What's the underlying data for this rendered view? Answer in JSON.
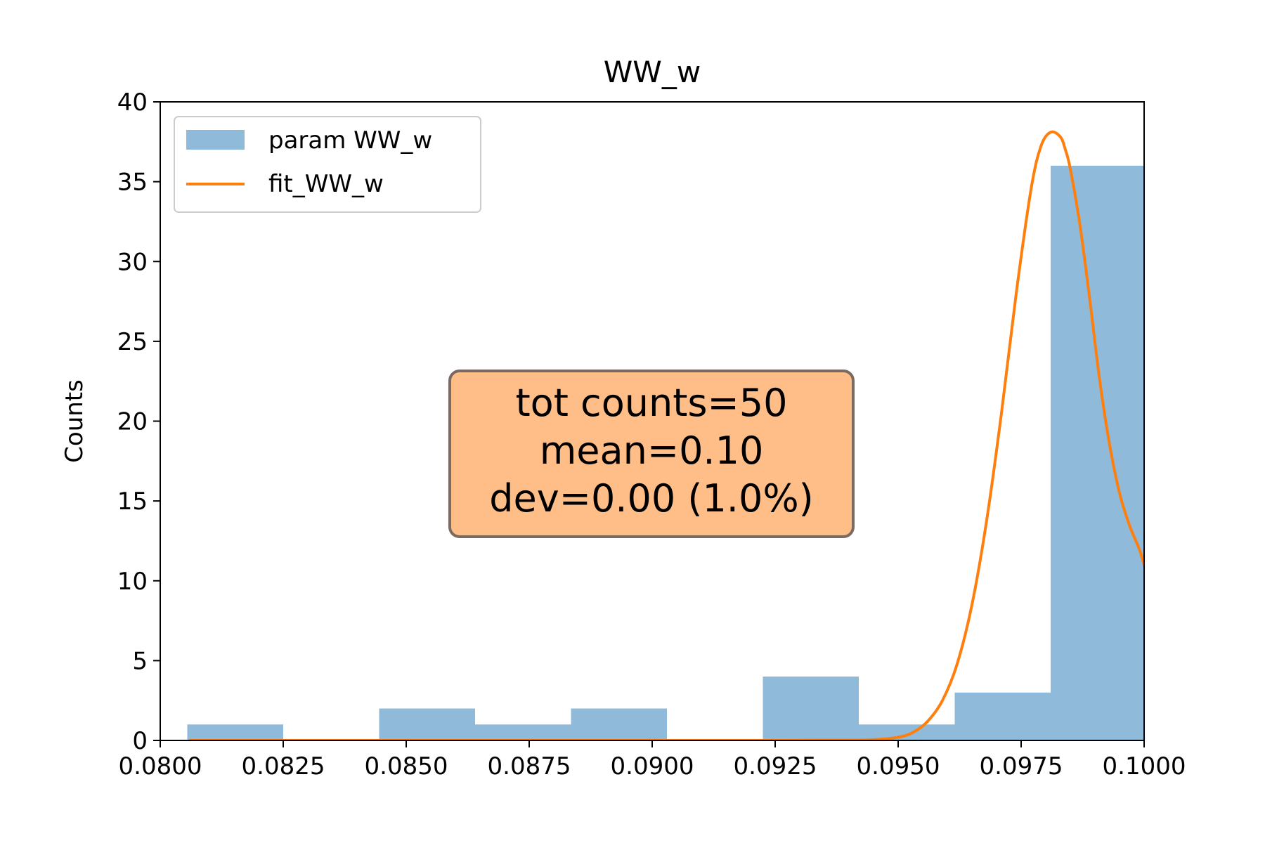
{
  "chart_data": {
    "type": "bar",
    "title": "WW_w",
    "xlabel": "",
    "ylabel": "Counts",
    "xlim": [
      0.08,
      0.1
    ],
    "ylim": [
      0,
      40
    ],
    "x_ticks": [
      "0.0800",
      "0.0825",
      "0.0850",
      "0.0875",
      "0.0900",
      "0.0925",
      "0.0950",
      "0.0975",
      "0.1000"
    ],
    "y_ticks": [
      "0",
      "5",
      "10",
      "15",
      "20",
      "25",
      "30",
      "35",
      "40"
    ],
    "grid": false,
    "legend_position": "top-left",
    "series": [
      {
        "name": "param WW_w",
        "kind": "histogram",
        "color": "#8fbad9",
        "bin_edges": [
          0.08055,
          0.0825,
          0.08445,
          0.0864,
          0.08835,
          0.0903,
          0.09225,
          0.0942,
          0.09615,
          0.0981,
          0.10005
        ],
        "counts": [
          1,
          0,
          2,
          1,
          2,
          0,
          4,
          1,
          3,
          36
        ]
      },
      {
        "name": "fit_WW_w",
        "kind": "line",
        "color": "#ff7f0e",
        "x": [
          0.0806,
          0.082,
          0.084,
          0.086,
          0.088,
          0.09,
          0.092,
          0.094,
          0.0945,
          0.095,
          0.0953,
          0.0956,
          0.0959,
          0.0962,
          0.0965,
          0.0968,
          0.0971,
          0.0974,
          0.0977,
          0.0979,
          0.0981,
          0.0983,
          0.0984,
          0.0985,
          0.0987,
          0.0989,
          0.0991,
          0.0993,
          0.0995,
          0.0997,
          0.0999,
          0.1
        ],
        "y": [
          0,
          0,
          0,
          0,
          0,
          0,
          0,
          0.01,
          0.05,
          0.2,
          0.5,
          1.2,
          2.5,
          4.8,
          8.5,
          13.8,
          20.5,
          28,
          34.5,
          37.2,
          38.1,
          37.8,
          37,
          35.8,
          32.2,
          27.5,
          22.5,
          18.5,
          15.5,
          13.5,
          12,
          11
        ]
      }
    ],
    "annotation": {
      "lines": [
        "tot counts=50",
        "mean=0.10",
        "dev=0.00 (1.0%)"
      ],
      "face_color": "#ffbe88",
      "edge_color": "#7a6a60"
    }
  }
}
